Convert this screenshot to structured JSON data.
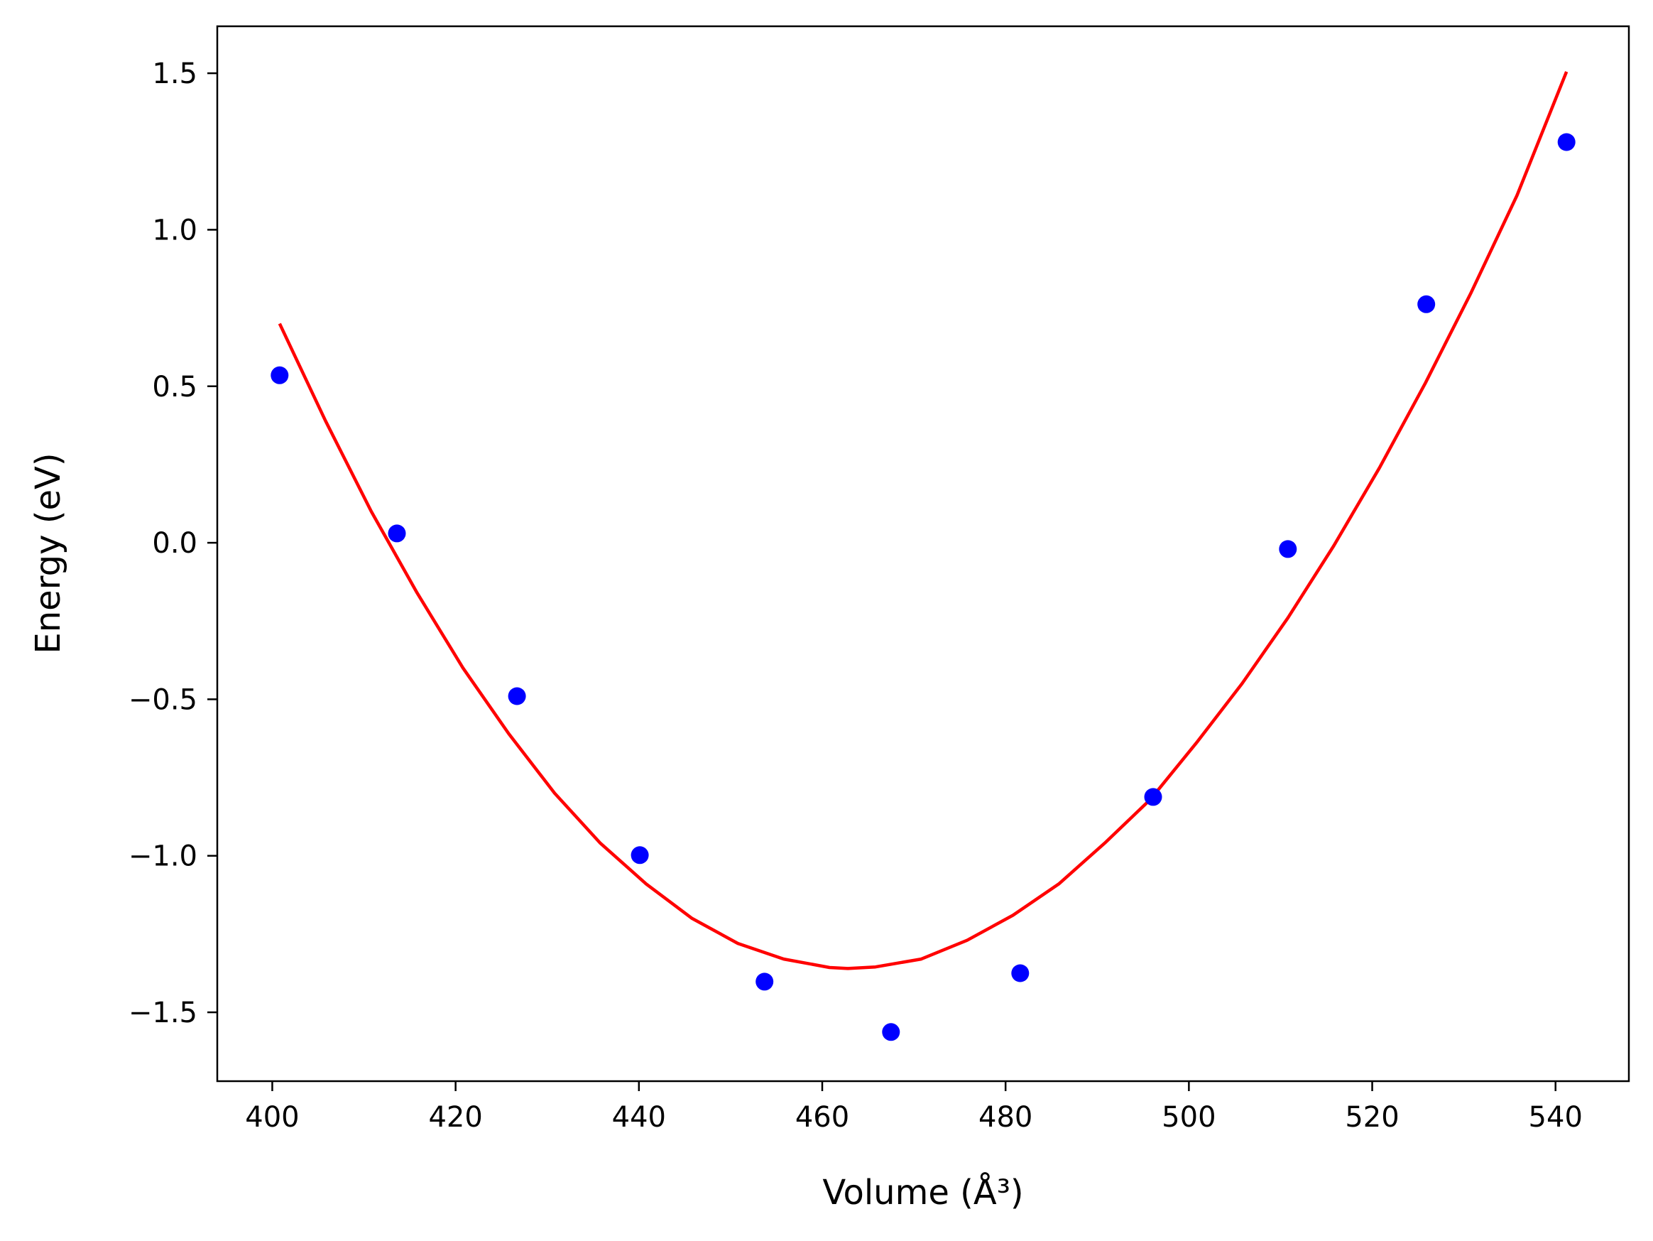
{
  "chart_data": {
    "type": "scatter",
    "xlabel": "Volume (Å³)",
    "ylabel": "Energy (eV)",
    "xlim": [
      394,
      548
    ],
    "ylim": [
      -1.72,
      1.65
    ],
    "x_ticks": [
      400,
      420,
      440,
      460,
      480,
      500,
      520,
      540
    ],
    "y_ticks": [
      -1.5,
      -1.0,
      -0.5,
      0.0,
      0.5,
      1.0,
      1.5
    ],
    "x_tick_labels": [
      "400",
      "420",
      "440",
      "460",
      "480",
      "500",
      "520",
      "540"
    ],
    "y_tick_labels": [
      "−1.5",
      "−1.0",
      "−0.5",
      "0.0",
      "0.5",
      "1.0",
      "1.5"
    ],
    "grid": false,
    "series": [
      {
        "kind": "scatter",
        "color": "#0000ff",
        "x": [
          400.8,
          413.6,
          426.7,
          440.1,
          453.7,
          467.5,
          481.6,
          496.1,
          510.8,
          525.9,
          541.2
        ],
        "y": [
          0.535,
          0.03,
          -0.49,
          -0.998,
          -1.402,
          -1.563,
          -1.375,
          -0.812,
          -0.02,
          0.762,
          1.28
        ]
      },
      {
        "kind": "line",
        "color": "#ff0000",
        "x": [
          400.8,
          405.8,
          410.8,
          415.8,
          420.8,
          425.8,
          430.8,
          435.8,
          440.8,
          445.8,
          450.8,
          455.8,
          460.8,
          462.8,
          465.8,
          470.8,
          475.8,
          480.8,
          485.8,
          490.8,
          495.8,
          500.8,
          505.8,
          510.8,
          515.8,
          520.8,
          525.8,
          530.8,
          535.8,
          541.2
        ],
        "y": [
          0.7,
          0.39,
          0.1,
          -0.16,
          -0.4,
          -0.61,
          -0.8,
          -0.96,
          -1.09,
          -1.2,
          -1.28,
          -1.33,
          -1.357,
          -1.36,
          -1.355,
          -1.33,
          -1.27,
          -1.19,
          -1.09,
          -0.96,
          -0.82,
          -0.64,
          -0.45,
          -0.24,
          -0.01,
          0.24,
          0.51,
          0.8,
          1.11,
          1.505
        ]
      }
    ]
  }
}
